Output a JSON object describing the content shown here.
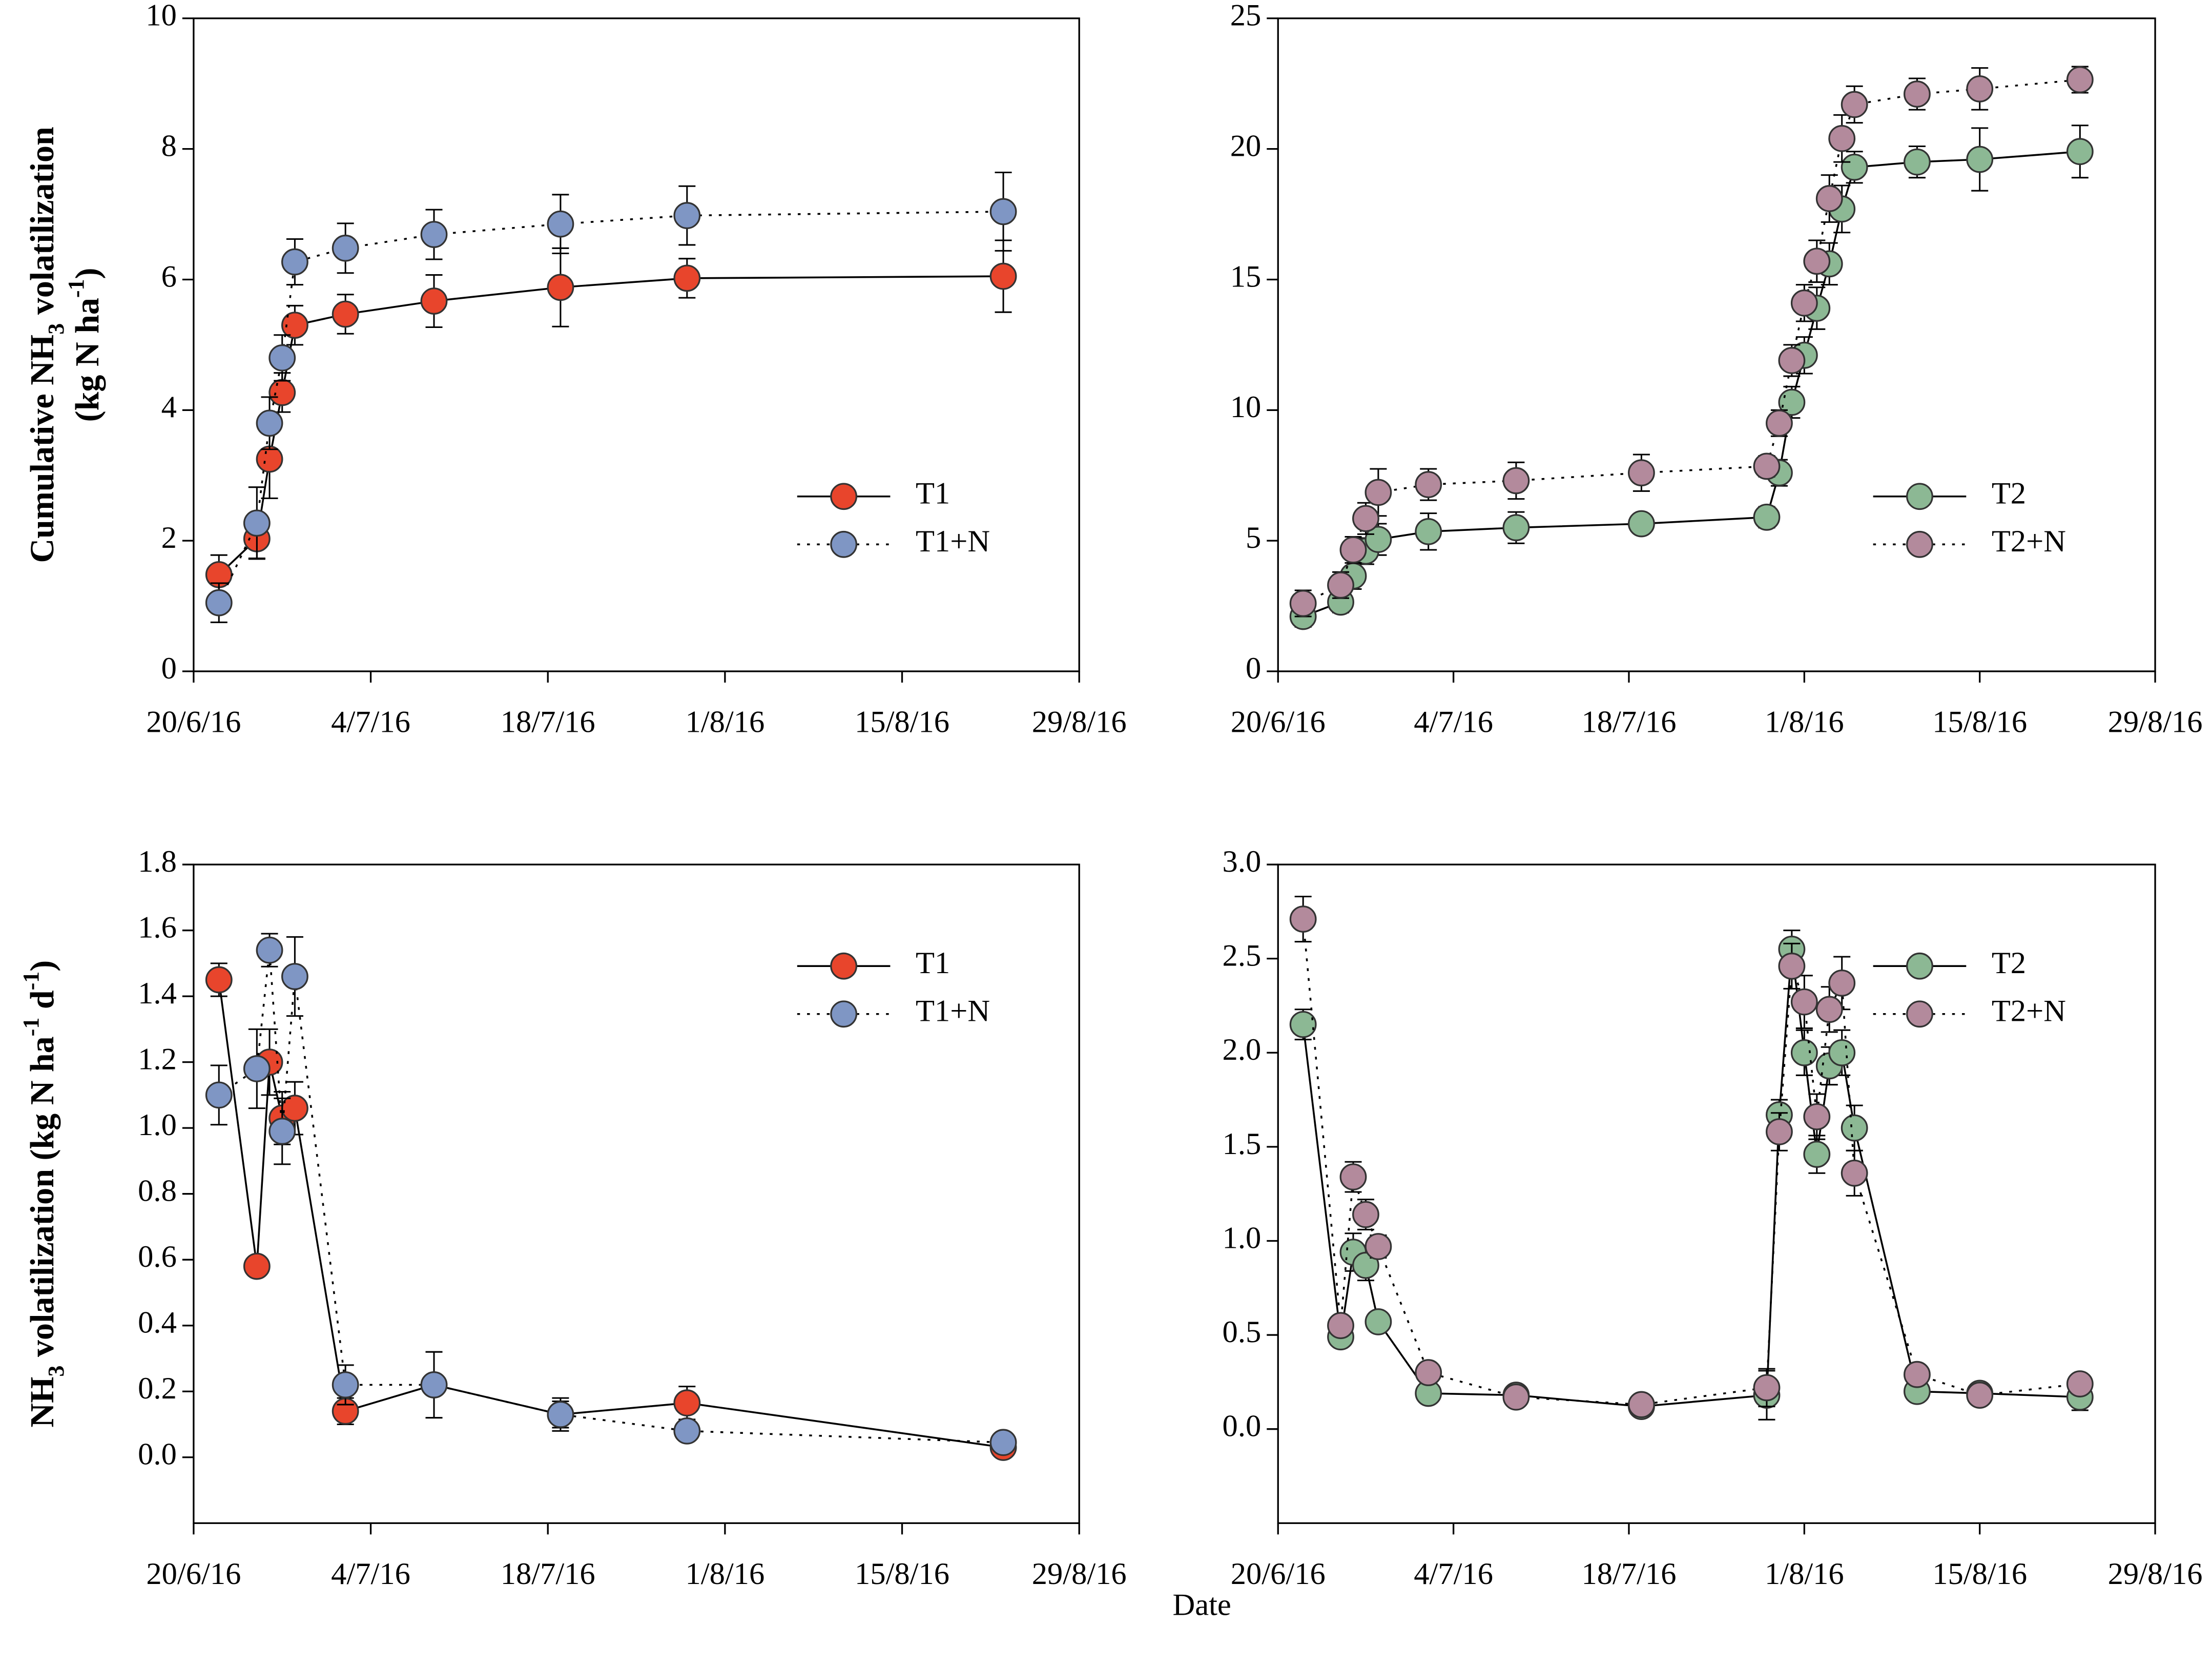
{
  "xlabel": "Date",
  "chart_data": [
    {
      "type": "line",
      "ylabel": [
        [
          {
            "text": "Cumulative NH"
          },
          {
            "text": "3",
            "shift": "sub"
          },
          {
            "text": " volatilization"
          }
        ],
        [
          {
            "text": "(kg N ha"
          },
          {
            "text": "-1",
            "shift": "super"
          },
          {
            "text": ")"
          }
        ]
      ],
      "x": [
        "2016-06-22",
        "2016-06-25",
        "2016-06-26",
        "2016-06-27",
        "2016-06-28",
        "2016-07-02",
        "2016-07-09",
        "2016-07-19",
        "2016-07-29",
        "2016-08-23"
      ],
      "xlim": [
        "2016-06-20",
        "2016-08-29"
      ],
      "xticks": [
        {
          "value": "2016-06-20",
          "label": "20/6/16"
        },
        {
          "value": "2016-07-04",
          "label": "4/7/16"
        },
        {
          "value": "2016-07-18",
          "label": "18/7/16"
        },
        {
          "value": "2016-08-01",
          "label": "1/8/16"
        },
        {
          "value": "2016-08-15",
          "label": "15/8/16"
        },
        {
          "value": "2016-08-29",
          "label": "29/8/16"
        }
      ],
      "ylim": [
        0,
        10
      ],
      "yticks": [
        0,
        2,
        4,
        6,
        8,
        10
      ],
      "legend": "lower right",
      "series": [
        {
          "name": "T1",
          "color": "#e8452c",
          "linestyle": "solid",
          "values": [
            1.48,
            2.03,
            3.25,
            4.27,
            5.3,
            5.47,
            5.67,
            5.88,
            6.02,
            6.05
          ],
          "errors": [
            0.3,
            0.3,
            0.6,
            0.3,
            0.3,
            0.3,
            0.4,
            0.6,
            0.3,
            0.55
          ]
        },
        {
          "name": "T1+N",
          "color": "#7f96c4",
          "linestyle": "dotted",
          "values": [
            1.05,
            2.27,
            3.8,
            4.8,
            6.27,
            6.48,
            6.69,
            6.85,
            6.98,
            7.04
          ],
          "errors": [
            0.3,
            0.55,
            0.4,
            0.35,
            0.35,
            0.38,
            0.38,
            0.45,
            0.45,
            0.6
          ]
        }
      ]
    },
    {
      "type": "line",
      "x": [
        "2016-06-22",
        "2016-06-25",
        "2016-06-26",
        "2016-06-27",
        "2016-06-28",
        "2016-07-02",
        "2016-07-09",
        "2016-07-19",
        "2016-07-29",
        "2016-07-30",
        "2016-07-31",
        "2016-08-01",
        "2016-08-02",
        "2016-08-03",
        "2016-08-04",
        "2016-08-05",
        "2016-08-10",
        "2016-08-15",
        "2016-08-23"
      ],
      "xlim": [
        "2016-06-20",
        "2016-08-29"
      ],
      "xticks": [
        {
          "value": "2016-06-20",
          "label": "20/6/16"
        },
        {
          "value": "2016-07-04",
          "label": "4/7/16"
        },
        {
          "value": "2016-07-18",
          "label": "18/7/16"
        },
        {
          "value": "2016-08-01",
          "label": "1/8/16"
        },
        {
          "value": "2016-08-15",
          "label": "15/8/16"
        },
        {
          "value": "2016-08-29",
          "label": "29/8/16"
        }
      ],
      "ylim": [
        0,
        25
      ],
      "yticks": [
        0,
        5,
        10,
        15,
        20,
        25
      ],
      "legend": "lower right",
      "series": [
        {
          "name": "T2",
          "color": "#8cb894",
          "linestyle": "solid",
          "values": [
            2.1,
            2.65,
            3.65,
            4.6,
            5.05,
            5.35,
            5.5,
            5.65,
            5.9,
            7.6,
            10.3,
            12.1,
            13.9,
            15.6,
            17.7,
            19.3,
            19.5,
            19.6,
            19.9
          ],
          "errors": [
            0.4,
            0.4,
            0.5,
            0.5,
            0.6,
            0.7,
            0.6,
            0.3,
            0.4,
            0.5,
            0.6,
            0.7,
            0.8,
            0.8,
            0.9,
            0.6,
            0.6,
            1.2,
            1.0
          ]
        },
        {
          "name": "T2+N",
          "color": "#b38a9c",
          "linestyle": "dotted",
          "values": [
            2.6,
            3.3,
            4.65,
            5.85,
            6.85,
            7.15,
            7.3,
            7.6,
            7.85,
            9.5,
            11.9,
            14.1,
            15.7,
            18.1,
            20.4,
            21.7,
            22.1,
            22.3,
            22.65
          ],
          "errors": [
            0.5,
            0.5,
            0.5,
            0.6,
            0.9,
            0.6,
            0.7,
            0.7,
            0.4,
            0.5,
            0.6,
            0.7,
            0.8,
            0.9,
            0.9,
            0.7,
            0.6,
            0.8,
            0.5
          ]
        }
      ]
    },
    {
      "type": "line",
      "ylabel": [
        [
          {
            "text": "NH"
          },
          {
            "text": "3",
            "shift": "sub"
          },
          {
            "text": " volatilization (kg N ha"
          },
          {
            "text": "-1",
            "shift": "super"
          },
          {
            "text": " d"
          },
          {
            "text": "-1",
            "shift": "super"
          },
          {
            "text": ")"
          }
        ]
      ],
      "x": [
        "2016-06-22",
        "2016-06-25",
        "2016-06-26",
        "2016-06-27",
        "2016-06-28",
        "2016-07-02",
        "2016-07-09",
        "2016-07-19",
        "2016-07-29",
        "2016-08-23"
      ],
      "xlim": [
        "2016-06-20",
        "2016-08-29"
      ],
      "xticks": [
        {
          "value": "2016-06-20",
          "label": "20/6/16"
        },
        {
          "value": "2016-07-04",
          "label": "4/7/16"
        },
        {
          "value": "2016-07-18",
          "label": "18/7/16"
        },
        {
          "value": "2016-08-01",
          "label": "1/8/16"
        },
        {
          "value": "2016-08-15",
          "label": "15/8/16"
        },
        {
          "value": "2016-08-29",
          "label": "29/8/16"
        }
      ],
      "ylim": [
        -0.2,
        1.8
      ],
      "yticks": [
        {
          "value": 0,
          "label": "0.0"
        },
        {
          "value": 0.2,
          "label": "0.2"
        },
        {
          "value": 0.4,
          "label": "0.4"
        },
        {
          "value": 0.6,
          "label": "0.6"
        },
        {
          "value": 0.8,
          "label": "0.8"
        },
        {
          "value": 1.0,
          "label": "1.0"
        },
        {
          "value": 1.2,
          "label": "1.2"
        },
        {
          "value": 1.4,
          "label": "1.4"
        },
        {
          "value": 1.6,
          "label": "1.6"
        },
        {
          "value": 1.8,
          "label": "1.8"
        }
      ],
      "legend": "upper right",
      "series": [
        {
          "name": "T1",
          "color": "#e8452c",
          "linestyle": "solid",
          "values": [
            1.45,
            0.58,
            1.2,
            1.03,
            1.06,
            0.14,
            0.22,
            0.13,
            0.165,
            0.03
          ],
          "errors": [
            0.05,
            0.02,
            0.1,
            0.08,
            0.08,
            0.04,
            0.1,
            0.05,
            0.05,
            0.01
          ]
        },
        {
          "name": "T1+N",
          "color": "#7f96c4",
          "linestyle": "dotted",
          "values": [
            1.1,
            1.18,
            1.54,
            0.99,
            1.46,
            0.22,
            0.22,
            0.13,
            0.08,
            0.045
          ],
          "errors": [
            0.09,
            0.12,
            0.05,
            0.1,
            0.12,
            0.06,
            0.1,
            0.04,
            0.01,
            0.01
          ]
        }
      ]
    },
    {
      "type": "line",
      "x": [
        "2016-06-22",
        "2016-06-25",
        "2016-06-26",
        "2016-06-27",
        "2016-06-28",
        "2016-07-02",
        "2016-07-09",
        "2016-07-19",
        "2016-07-29",
        "2016-07-30",
        "2016-07-31",
        "2016-08-01",
        "2016-08-02",
        "2016-08-03",
        "2016-08-04",
        "2016-08-05",
        "2016-08-10",
        "2016-08-15",
        "2016-08-23"
      ],
      "xlim": [
        "2016-06-20",
        "2016-08-29"
      ],
      "xticks": [
        {
          "value": "2016-06-20",
          "label": "20/6/16"
        },
        {
          "value": "2016-07-04",
          "label": "4/7/16"
        },
        {
          "value": "2016-07-18",
          "label": "18/7/16"
        },
        {
          "value": "2016-08-01",
          "label": "1/8/16"
        },
        {
          "value": "2016-08-15",
          "label": "15/8/16"
        },
        {
          "value": "2016-08-29",
          "label": "29/8/16"
        }
      ],
      "ylim": [
        -0.5,
        3.0
      ],
      "yticks": [
        {
          "value": 0,
          "label": "0.0"
        },
        {
          "value": 0.5,
          "label": "0.5"
        },
        {
          "value": 1.0,
          "label": "1.0"
        },
        {
          "value": 1.5,
          "label": "1.5"
        },
        {
          "value": 2.0,
          "label": "2.0"
        },
        {
          "value": 2.5,
          "label": "2.5"
        },
        {
          "value": 3.0,
          "label": "3.0"
        }
      ],
      "legend": "upper right",
      "series": [
        {
          "name": "T2",
          "color": "#8cb894",
          "linestyle": "solid",
          "values": [
            2.15,
            0.49,
            0.94,
            0.87,
            0.57,
            0.19,
            0.18,
            0.12,
            0.18,
            1.67,
            2.55,
            2.0,
            1.46,
            1.93,
            2.0,
            1.6,
            0.2,
            0.19,
            0.17
          ],
          "errors": [
            0.08,
            0.03,
            0.1,
            0.08,
            0.04,
            0.02,
            0.02,
            0.02,
            0.13,
            0.08,
            0.1,
            0.12,
            0.1,
            0.1,
            0.12,
            0.12,
            0.05,
            0.03,
            0.07
          ]
        },
        {
          "name": "T2+N",
          "color": "#b38a9c",
          "linestyle": "dotted",
          "values": [
            2.71,
            0.55,
            1.34,
            1.14,
            0.97,
            0.3,
            0.17,
            0.13,
            0.22,
            1.58,
            2.46,
            2.27,
            1.66,
            2.23,
            2.37,
            1.36,
            0.29,
            0.18,
            0.24
          ],
          "errors": [
            0.12,
            0.05,
            0.08,
            0.08,
            0.06,
            0.03,
            0.02,
            0.02,
            0.1,
            0.1,
            0.12,
            0.14,
            0.12,
            0.12,
            0.14,
            0.12,
            0.03,
            0.02,
            0.04
          ]
        }
      ]
    }
  ]
}
